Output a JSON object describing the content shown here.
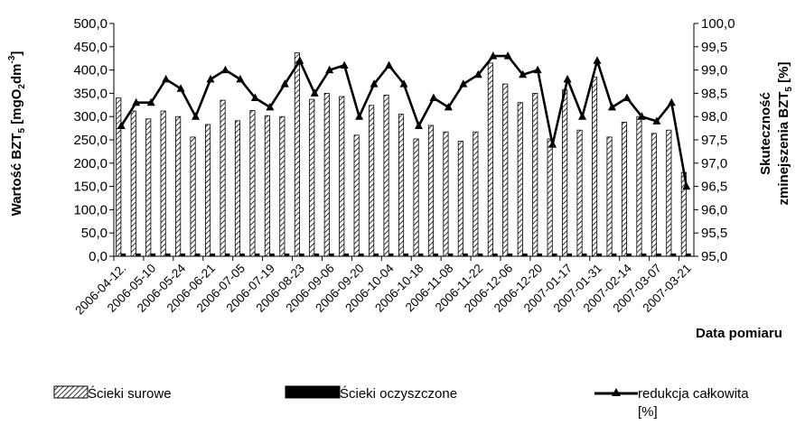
{
  "chart_data": {
    "type": "bar",
    "ylabel_left": "Wartość BZT₅ [mgO₂dm⁻³]",
    "ylabel_left_parts": [
      "Wartość BZT",
      "5",
      " [mgO",
      "2",
      "dm",
      "-3",
      "]"
    ],
    "ylabel_right_line1": "Skuteczność",
    "ylabel_right_line2_parts": [
      "zminejszenia BZT",
      "5",
      " [%]"
    ],
    "xlabel": "Data pomiaru",
    "ylim_left": [
      0,
      500
    ],
    "ylim_right": [
      95,
      100
    ],
    "yticks_left": [
      "0,0",
      "50,0",
      "100,0",
      "150,0",
      "200,0",
      "250,0",
      "300,0",
      "350,0",
      "400,0",
      "450,0",
      "500,0"
    ],
    "yticks_right": [
      "95,0",
      "95,5",
      "96,0",
      "96,5",
      "97,0",
      "97,5",
      "98,0",
      "98,5",
      "99,0",
      "99,5",
      "100,0"
    ],
    "x_tick_labels": [
      "2006-04-12.",
      "2006-05-10",
      "2006-05-24",
      "2006-06-21",
      "2006-07-05",
      "2006-07-19",
      "2006-08-23",
      "2006-09-06",
      "2006-09-20",
      "2006-10-04",
      "2006-10-18",
      "2006-11-08",
      "2006-11-22",
      "2006-12-06",
      "2006-12-20",
      "2007-01-17",
      "2007-01-31",
      "2007-02-14",
      "2007-03-07",
      "2007-03-21"
    ],
    "series": [
      {
        "name": "Ścieki surowe",
        "axis": "left",
        "values": [
          340,
          312,
          295,
          312,
          300,
          256,
          283,
          335,
          291,
          313,
          302,
          300,
          437,
          337,
          350,
          343,
          260,
          324,
          346,
          305,
          252,
          281,
          267,
          247,
          267,
          415,
          370,
          330,
          350,
          252,
          358,
          271,
          385,
          256,
          288,
          300,
          264,
          271,
          180
        ]
      },
      {
        "name": "Ścieki oczyszczone",
        "axis": "left",
        "values": [
          6,
          6,
          6,
          6,
          6,
          6,
          6,
          6,
          6,
          6,
          6,
          6,
          6,
          6,
          6,
          6,
          6,
          6,
          6,
          6,
          6,
          6,
          6,
          6,
          6,
          6,
          6,
          6,
          6,
          6,
          6,
          6,
          6,
          6,
          6,
          6,
          6,
          6,
          6
        ]
      },
      {
        "name": "redukcja całkowita [%]",
        "axis": "right",
        "type": "line",
        "values": [
          97.8,
          98.3,
          98.3,
          98.8,
          98.6,
          98.0,
          98.8,
          99.0,
          98.8,
          98.4,
          98.2,
          98.7,
          99.2,
          98.5,
          99.0,
          99.1,
          98.0,
          98.7,
          99.1,
          98.7,
          97.8,
          98.4,
          98.2,
          98.7,
          98.9,
          99.3,
          99.3,
          98.9,
          99.0,
          97.4,
          98.8,
          98.0,
          99.2,
          98.2,
          98.4,
          98.0,
          97.9,
          98.3,
          96.5
        ]
      }
    ],
    "legend": {
      "placement": "bottom",
      "items": [
        {
          "label": "Ścieki surowe",
          "style": "hatched"
        },
        {
          "label": "Ścieki  oczyszczone",
          "style": "solid-black"
        },
        {
          "label_line1": "redukcja całkowita",
          "label_line2": "[%]",
          "style": "line-triangle"
        }
      ]
    },
    "grid": false
  }
}
